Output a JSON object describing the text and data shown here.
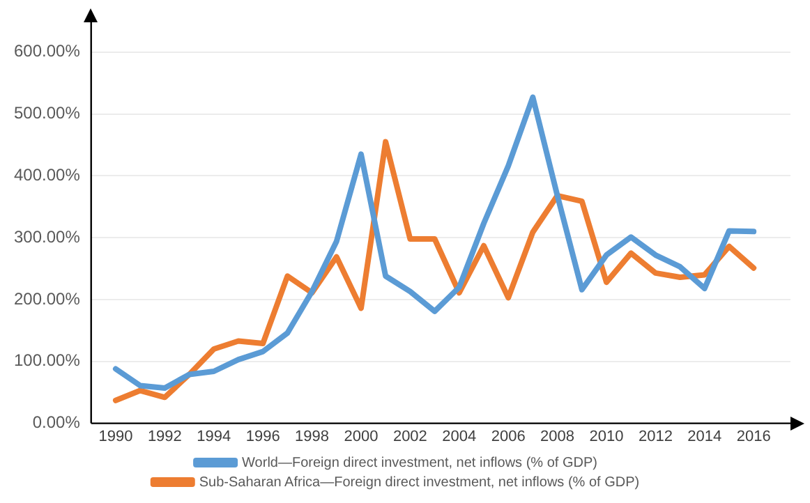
{
  "chart_data": {
    "type": "line",
    "x": [
      1990,
      1991,
      1992,
      1993,
      1994,
      1995,
      1996,
      1997,
      1998,
      1999,
      2000,
      2001,
      2002,
      2003,
      2004,
      2005,
      2006,
      2007,
      2008,
      2009,
      2010,
      2011,
      2012,
      2013,
      2014,
      2015,
      2016
    ],
    "series": [
      {
        "name": "World—Foreign direct investment, net inflows (% of GDP)",
        "color": "#5b9bd5",
        "values": [
          88,
          61,
          57,
          79,
          84,
          103,
          116,
          146,
          213,
          294,
          435,
          238,
          213,
          181,
          220,
          323,
          416,
          527,
          368,
          216,
          272,
          301,
          272,
          253,
          218,
          311,
          310
        ]
      },
      {
        "name": "Sub-Saharan Africa—Foreign direct investment, net inflows (% of GDP)",
        "color": "#ed7d31",
        "values": [
          37,
          53,
          42,
          79,
          120,
          133,
          129,
          238,
          211,
          269,
          186,
          455,
          298,
          298,
          211,
          287,
          203,
          309,
          368,
          359,
          228,
          275,
          243,
          236,
          240,
          286,
          251
        ]
      }
    ],
    "xlim": [
      1989,
      2017.5
    ],
    "xticks": [
      1990,
      1992,
      1994,
      1996,
      1998,
      2000,
      2002,
      2004,
      2006,
      2008,
      2010,
      2012,
      2014,
      2016
    ],
    "ylim": [
      0,
      650
    ],
    "yticks": [
      {
        "value": 0,
        "label": "0.00%"
      },
      {
        "value": 100,
        "label": "100.00%"
      },
      {
        "value": 200,
        "label": "200.00%"
      },
      {
        "value": 300,
        "label": "300.00%"
      },
      {
        "value": 400,
        "label": "400.00%"
      },
      {
        "value": 500,
        "label": "500.00%"
      },
      {
        "value": 600,
        "label": "600.00%"
      }
    ],
    "grid": "y",
    "legend": "bottom",
    "marker": "none",
    "line_style": "solid"
  }
}
